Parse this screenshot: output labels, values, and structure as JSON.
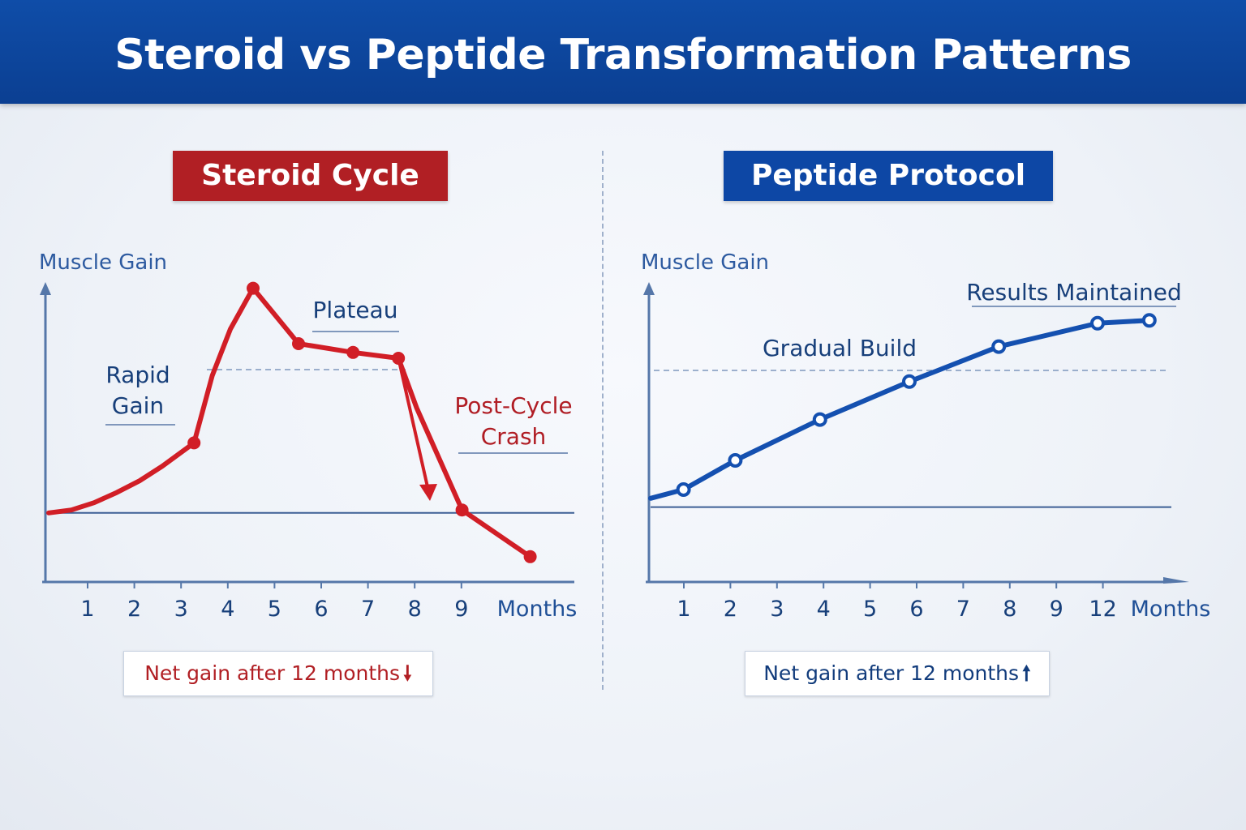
{
  "header": {
    "title": "Steroid vs Peptide Transformation Patterns"
  },
  "colors": {
    "banner": "#0d47a5",
    "steroid": "#d11e26",
    "peptide": "#1450b0",
    "axis": "#5577a9",
    "text": "#173f7a"
  },
  "chart_data": [
    {
      "type": "line",
      "panel_title": "Steroid Cycle",
      "ylabel": "Muscle Gain",
      "xlabel": "Months",
      "tick_labels": [
        "1",
        "2",
        "3",
        "4",
        "5",
        "6",
        "7",
        "8",
        "9"
      ],
      "ylim": [
        0,
        100
      ],
      "baseline": 22,
      "series": [
        {
          "x": [
            0,
            0.5,
            1,
            1.5,
            2,
            2.5,
            3.2,
            3.6,
            4.0,
            4.5,
            5.5,
            6.7,
            7.7,
            8.1,
            9.1,
            10.6
          ],
          "y": [
            22,
            23,
            25.5,
            29,
            33,
            38,
            46,
            69,
            85,
            99,
            80,
            77,
            75,
            58,
            23,
            7
          ]
        }
      ],
      "annotations": [
        {
          "text_lines": [
            "Rapid",
            "Gain"
          ],
          "x": 2.6,
          "y": 60
        },
        {
          "text_lines": [
            "Plateau"
          ],
          "x": 5.5,
          "y": 89
        },
        {
          "text_lines": [
            "Post-Cycle",
            "Crash"
          ],
          "x": 9.5,
          "y": 54
        }
      ],
      "reference_line": 71,
      "net_label": "Net gain after 12 months",
      "net_arrow": "down"
    },
    {
      "type": "line",
      "panel_title": "Peptide Protocol",
      "ylabel": "Muscle Gain",
      "xlabel": "Months",
      "tick_labels": [
        "1",
        "2",
        "3",
        "4",
        "5",
        "6",
        "7",
        "8",
        "9",
        "12"
      ],
      "ylim": [
        0,
        100
      ],
      "baseline": 24,
      "series": [
        {
          "x": [
            0,
            0.7,
            1.8,
            3.6,
            5.5,
            7.4,
            9.5,
            10.6
          ],
          "y": [
            27,
            30,
            40,
            54,
            67,
            79,
            87,
            88
          ]
        }
      ],
      "annotations": [
        {
          "text_lines": [
            "Results Maintained"
          ],
          "x": 9.0,
          "y": 99
        },
        {
          "text_lines": [
            "Gradual Build"
          ],
          "x": 4.0,
          "y": 81
        }
      ],
      "reference_line": 71,
      "net_label": "Net gain after 12 months",
      "net_arrow": "up"
    }
  ]
}
